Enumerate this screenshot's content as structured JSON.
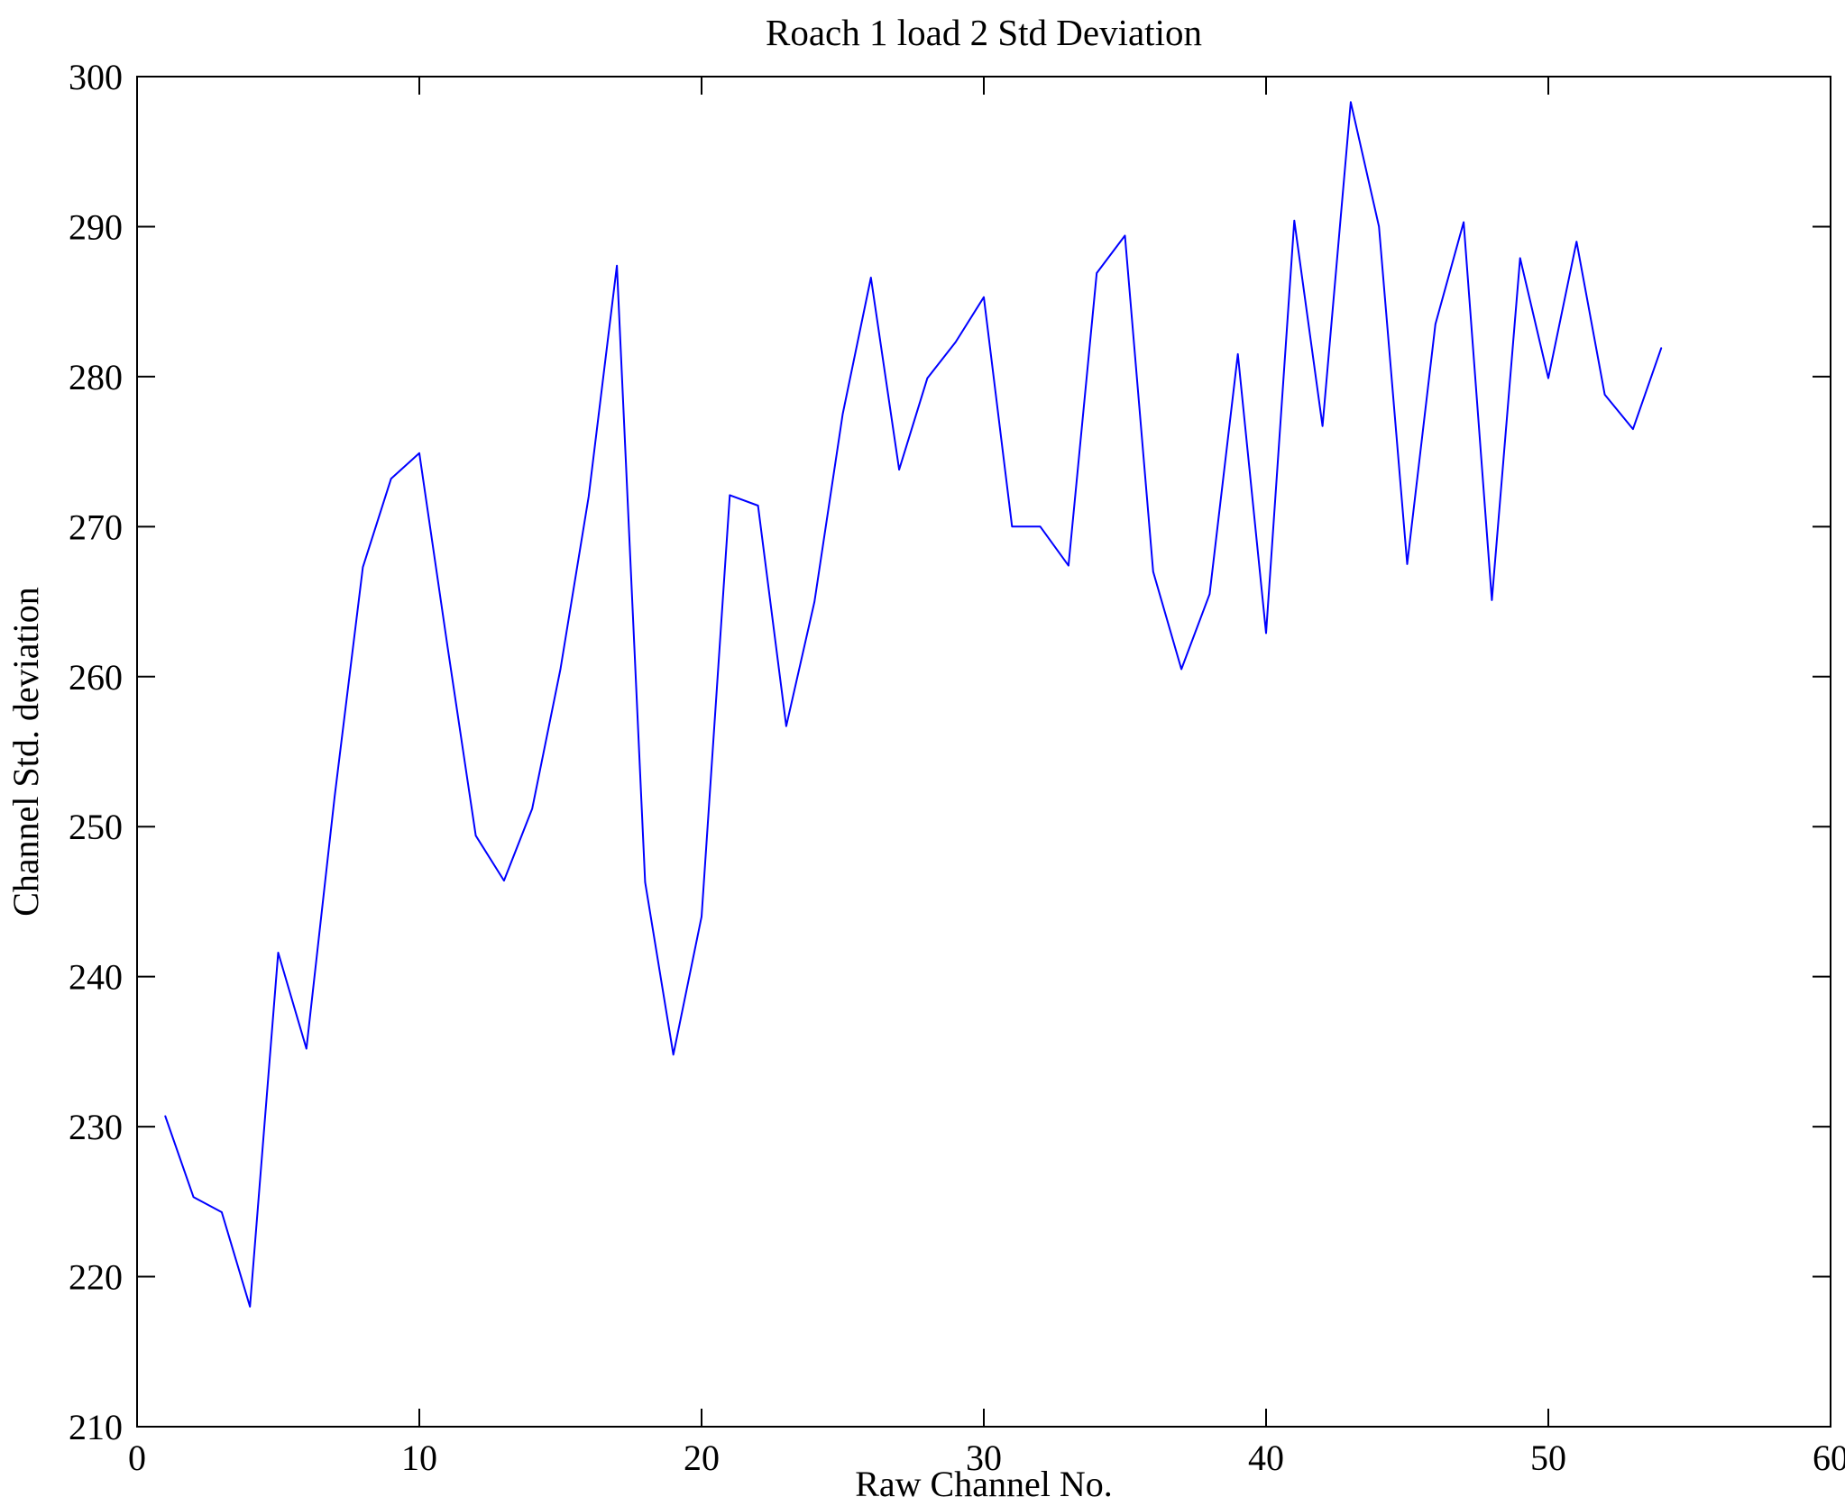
{
  "chart_data": {
    "type": "line",
    "title": "Roach 1 load 2 Std Deviation",
    "xlabel": "Raw Channel No.",
    "ylabel": "Channel Std. deviation",
    "xlim": [
      0,
      60
    ],
    "ylim": [
      210,
      300
    ],
    "xticks": [
      0,
      10,
      20,
      30,
      40,
      50,
      60
    ],
    "yticks": [
      210,
      220,
      230,
      240,
      250,
      260,
      270,
      280,
      290,
      300
    ],
    "grid": false,
    "legend": "none",
    "line_color": "#0000ff",
    "frame_color": "#000000",
    "background_color": "#ffffff",
    "series_name": "Channel Std. deviation vs Raw Channel No.",
    "x": [
      1,
      2,
      3,
      4,
      5,
      6,
      7,
      8,
      9,
      10,
      11,
      12,
      13,
      14,
      15,
      16,
      17,
      18,
      19,
      20,
      21,
      22,
      23,
      24,
      25,
      26,
      27,
      28,
      29,
      30,
      31,
      32,
      33,
      34,
      35,
      36,
      37,
      38,
      39,
      40,
      41,
      42,
      43,
      44,
      45,
      46,
      47,
      48,
      49,
      50,
      51,
      52,
      53,
      54
    ],
    "y": [
      230.7,
      225.3,
      224.3,
      218.0,
      241.6,
      235.2,
      252.0,
      267.3,
      273.2,
      274.9,
      262.0,
      249.4,
      246.4,
      251.2,
      260.5,
      272.0,
      287.4,
      246.3,
      234.8,
      244.0,
      272.1,
      271.4,
      256.7,
      265.0,
      277.5,
      286.6,
      273.8,
      279.9,
      282.3,
      285.3,
      270.0,
      270.0,
      267.4,
      286.9,
      289.4,
      267.0,
      260.5,
      265.5,
      281.5,
      262.9,
      290.4,
      276.7,
      298.3,
      290.0,
      267.5,
      283.5,
      290.3,
      265.1,
      287.9,
      279.9,
      289.0,
      278.8,
      276.5,
      281.9
    ]
  }
}
